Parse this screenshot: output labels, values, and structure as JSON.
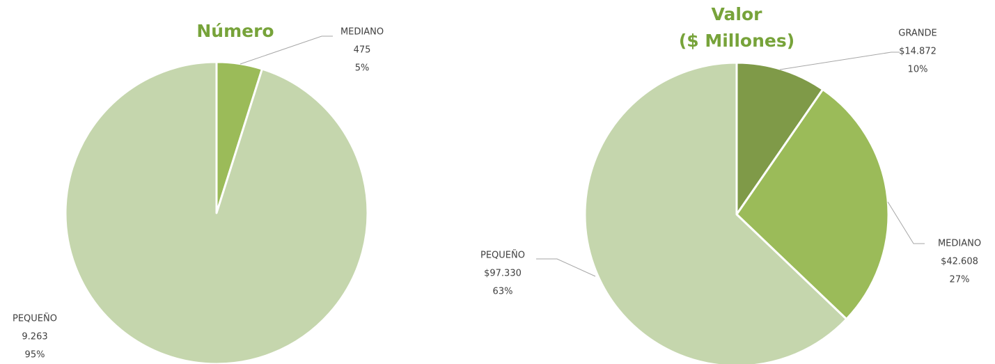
{
  "chart_data": [
    {
      "type": "pie",
      "title": [
        "Número"
      ],
      "categories": [
        "MEDIANO",
        "PEQUEÑO"
      ],
      "values": [
        475,
        9263
      ],
      "value_labels": [
        "475",
        "9.263"
      ],
      "percent_labels": [
        "5%",
        "95%"
      ],
      "colors": [
        "#9bbb59",
        "#c5d6ad"
      ]
    },
    {
      "type": "pie",
      "title": [
        "Valor",
        "($ Millones)"
      ],
      "categories": [
        "GRANDE",
        "MEDIANO",
        "PEQUEÑO"
      ],
      "values": [
        14872,
        42608,
        97330
      ],
      "value_labels": [
        "$14.872",
        "$42.608",
        "$97.330"
      ],
      "percent_labels": [
        "10%",
        "27%",
        "63%"
      ],
      "colors": [
        "#7f9a48",
        "#9bbb59",
        "#c5d6ad"
      ]
    }
  ]
}
